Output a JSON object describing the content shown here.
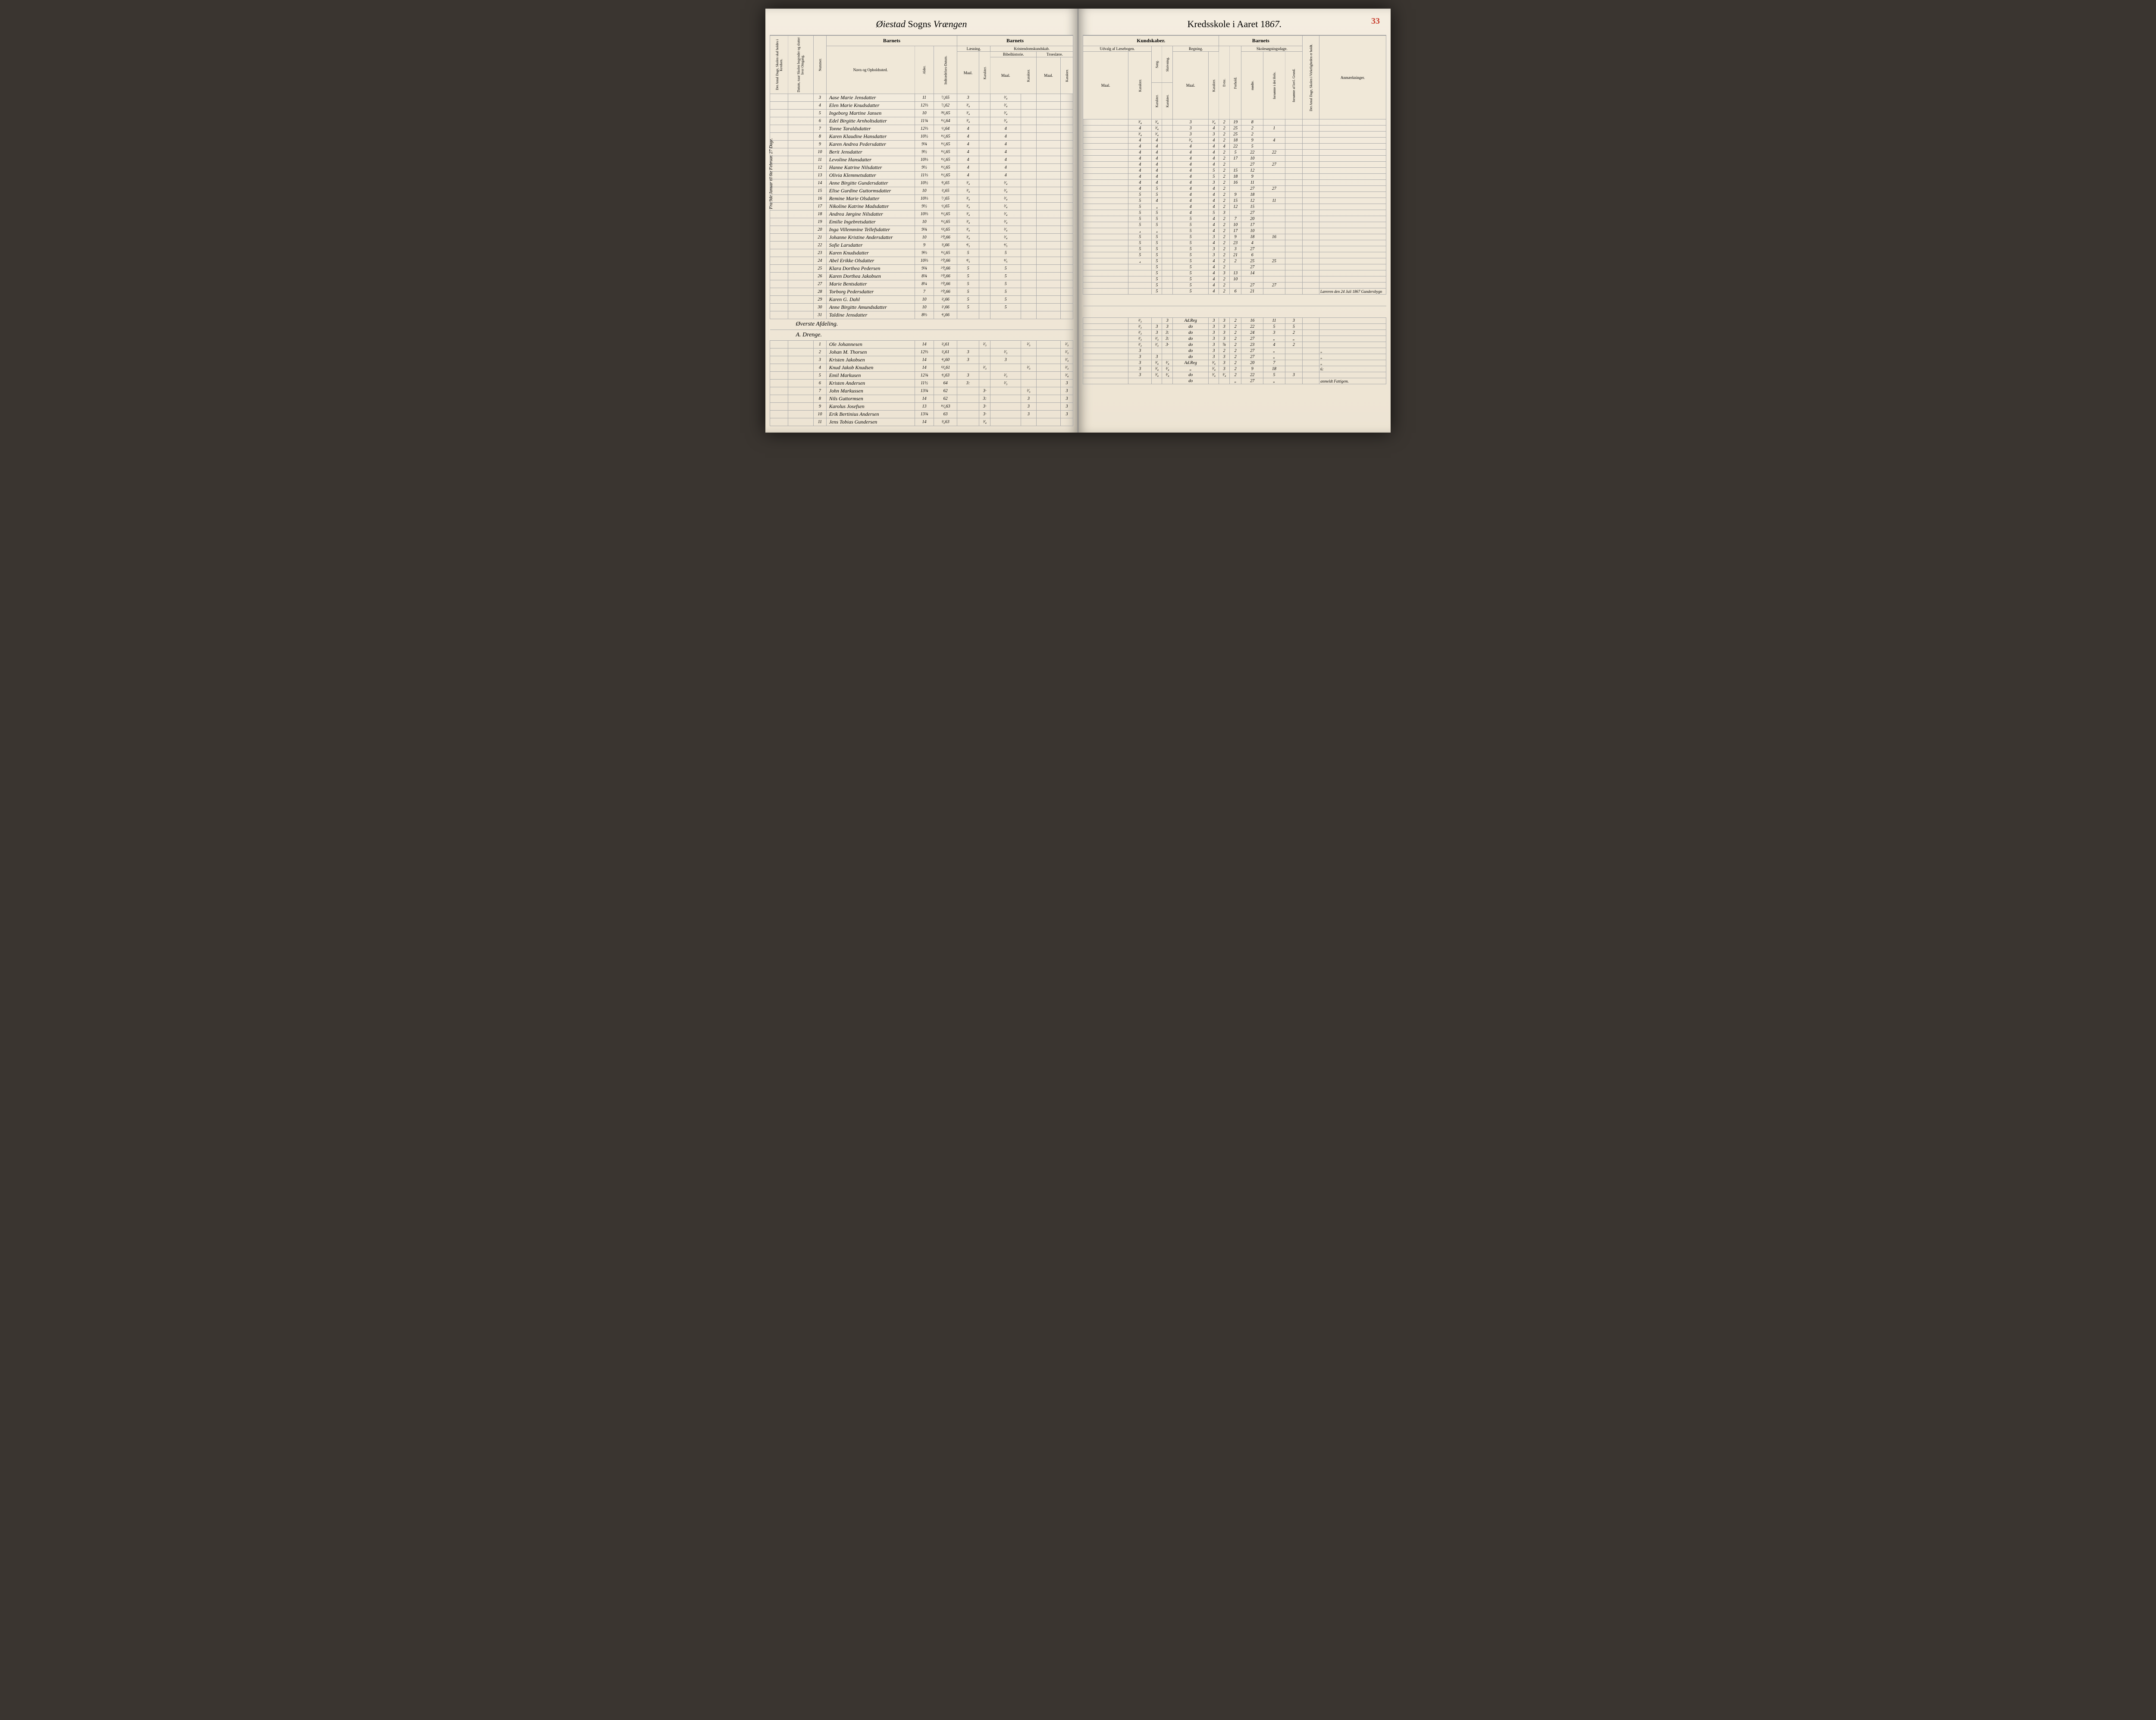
{
  "page_number": "33",
  "title": {
    "parish_script": "Øiestad",
    "sogns": "Sogns",
    "district_script": "Vrængen",
    "school": "Kredsskole i Aaret 18",
    "year_suffix": "67."
  },
  "headers": {
    "left_rotated1": "Det Antal Dage, Skolen skal holdes i Kredsen.",
    "left_rotated2": "Datum, naar Skolen begynder og slutter hver Omgang.",
    "nummer": "Nummer.",
    "barnets": "Barnets",
    "navn": "Navn og Opholdssted.",
    "alder": "Alder.",
    "indtrad": "Indtrædelses-Datum.",
    "laesning": "Læsning.",
    "kristendom": "Kristendomskundskab.",
    "maal": "Maal.",
    "karakter": "Karakter.",
    "bibelhistorie": "Bibelhistorie.",
    "troeslaere": "Troeslære.",
    "kundskaber": "Kundskaber.",
    "udvalg": "Udvalg af Læsebogen.",
    "sang": "Sang.",
    "skrivning": "Skrivning.",
    "regning": "Regning.",
    "evne": "Evne.",
    "forhold": "Forhold.",
    "skolesogning": "Skolesøgningsdage.",
    "modte": "mødte.",
    "forsomte_hele": "forsømte i det Hele.",
    "forsomte_lovl": "forsømte af lovl. Grund.",
    "antal_dage": "Det Antal Dage, Skolen i Virkeligheden er holdt.",
    "anmaerkninger": "Anmærkninger."
  },
  "side_note": "Fra 9de Januar til 6te Februar.  27 Dage.",
  "section_header1": "Øverste Afdeling.",
  "section_header2": "A. Drenge.",
  "final_note": "Læreren den 24 Juli 1867 Gundersbygn",
  "students_top": [
    {
      "n": "3",
      "name": "Aase Marie Jensdatter",
      "age": "11",
      "entry": "⁷⁄₆65",
      "l_m": "3",
      "l_k": "",
      "b_m": "³⁄₄",
      "b_k": "",
      "u_m": "",
      "u_k": "³⁄₄",
      "sa": "³⁄₄",
      "sk": "",
      "r_m": "3",
      "r_k": "³⁄₄",
      "ev": "2",
      "fh": "19",
      "md": "8",
      "f1": "",
      "f2": ""
    },
    {
      "n": "4",
      "name": "Elen Marie Knudsdatter",
      "age": "12⅔",
      "entry": "⁷⁄₆62",
      "l_m": "³⁄₄",
      "l_k": "",
      "b_m": "³⁄₄",
      "b_k": "",
      "u_m": "",
      "u_k": "4",
      "sa": "³⁄₄",
      "sk": "",
      "r_m": "3",
      "r_k": "4",
      "ev": "2",
      "fh": "25",
      "md": "2",
      "f1": "1",
      "f2": ""
    },
    {
      "n": "5",
      "name": "Ingeborg Martine Jansen",
      "age": "10",
      "entry": "²⁸⁄₆65",
      "l_m": "³⁄₄",
      "l_k": "",
      "b_m": "³⁄₄",
      "b_k": "",
      "u_m": "",
      "u_k": "³⁄₄",
      "sa": "³⁄₄",
      "sk": "",
      "r_m": "3",
      "r_k": "3",
      "ev": "2",
      "fh": "25",
      "md": "2",
      "f1": "",
      "f2": ""
    },
    {
      "n": "6",
      "name": "Edel Birgitte Arnholtsdatter",
      "age": "11¾",
      "entry": "¹⁶⁄₆64",
      "l_m": "³⁄₄",
      "l_k": "",
      "b_m": "³⁄₄",
      "b_k": "",
      "u_m": "",
      "u_k": "4",
      "sa": "4",
      "sk": "",
      "r_m": "³⁄₄",
      "r_k": "4",
      "ev": "2",
      "fh": "18",
      "md": "9",
      "f1": "4",
      "f2": ""
    },
    {
      "n": "7",
      "name": "Tonne Taraldsdatter",
      "age": "12⅔",
      "entry": "⁶⁄₆64",
      "l_m": "4",
      "l_k": "",
      "b_m": "4",
      "b_k": "",
      "u_m": "",
      "u_k": "4",
      "sa": "4",
      "sk": "",
      "r_m": "4",
      "r_k": "4",
      "ev": "4",
      "fh": "22",
      "md": "5",
      "f1": "",
      "f2": ""
    },
    {
      "n": "8",
      "name": "Karen Klaudine Hansdatter",
      "age": "10½",
      "entry": "¹⁶⁄₆65",
      "l_m": "4",
      "l_k": "",
      "b_m": "4",
      "b_k": "",
      "u_m": "",
      "u_k": "4",
      "sa": "4",
      "sk": "",
      "r_m": "4",
      "r_k": "4",
      "ev": "2",
      "fh": "5",
      "md": "22",
      "f1": "22",
      "f2": ""
    },
    {
      "n": "9",
      "name": "Karen Andrea Pedersdatter",
      "age": "9¾",
      "entry": "¹⁶⁄₆65",
      "l_m": "4",
      "l_k": "",
      "b_m": "4",
      "b_k": "",
      "u_m": "",
      "u_k": "4",
      "sa": "4",
      "sk": "",
      "r_m": "4",
      "r_k": "4",
      "ev": "2",
      "fh": "17",
      "md": "10",
      "f1": "",
      "f2": ""
    },
    {
      "n": "10",
      "name": "Berit Jensdatter",
      "age": "9½",
      "entry": "¹⁶⁄₆65",
      "l_m": "4",
      "l_k": "",
      "b_m": "4",
      "b_k": "",
      "u_m": "",
      "u_k": "4",
      "sa": "4",
      "sk": "",
      "r_m": "4",
      "r_k": "4",
      "ev": "2",
      "fh": "",
      "md": "27",
      "f1": "27",
      "f2": ""
    },
    {
      "n": "11",
      "name": "Levoline Hansdatter",
      "age": "10⅓",
      "entry": "¹⁶⁄₆65",
      "l_m": "4",
      "l_k": "",
      "b_m": "4",
      "b_k": "",
      "u_m": "",
      "u_k": "4",
      "sa": "4",
      "sk": "",
      "r_m": "4",
      "r_k": "5",
      "ev": "2",
      "fh": "15",
      "md": "12",
      "f1": "",
      "f2": ""
    },
    {
      "n": "12",
      "name": "Hanne Katrine Nilsdatter",
      "age": "9½",
      "entry": "¹⁶⁄₆65",
      "l_m": "4",
      "l_k": "",
      "b_m": "4",
      "b_k": "",
      "u_m": "",
      "u_k": "4",
      "sa": "4",
      "sk": "",
      "r_m": "4",
      "r_k": "5",
      "ev": "2",
      "fh": "18",
      "md": "9",
      "f1": "",
      "f2": ""
    },
    {
      "n": "13",
      "name": "Olivia Klemmetsdatter",
      "age": "11⅓",
      "entry": "¹⁶⁄₆65",
      "l_m": "4",
      "l_k": "",
      "b_m": "4",
      "b_k": "",
      "u_m": "",
      "u_k": "4",
      "sa": "4",
      "sk": "",
      "r_m": "4",
      "r_k": "3",
      "ev": "2",
      "fh": "16",
      "md": "11",
      "f1": "",
      "f2": ""
    },
    {
      "n": "14",
      "name": "Anne Birgitte Gundersdatter",
      "age": "10½",
      "entry": "⁸⁄₆65",
      "l_m": "³⁄₄",
      "l_k": "",
      "b_m": "³⁄₄",
      "b_k": "",
      "u_m": "",
      "u_k": "4",
      "sa": "5",
      "sk": "",
      "r_m": "4",
      "r_k": "4",
      "ev": "2",
      "fh": "",
      "md": "27",
      "f1": "27",
      "f2": ""
    },
    {
      "n": "15",
      "name": "Elise Gurdine Guttormsdatter",
      "age": "10",
      "entry": "²⁄₆65",
      "l_m": "³⁄₄",
      "l_k": "",
      "b_m": "³⁄₄",
      "b_k": "",
      "u_m": "",
      "u_k": "5",
      "sa": "5",
      "sk": "",
      "r_m": "4",
      "r_k": "4",
      "ev": "2",
      "fh": "9",
      "md": "18",
      "f1": "",
      "f2": ""
    },
    {
      "n": "16",
      "name": "Remine Marie Olsdatter",
      "age": "10⅓",
      "entry": "⁷⁄₂65",
      "l_m": "³⁄₄",
      "l_k": "",
      "b_m": "³⁄₄",
      "b_k": "",
      "u_m": "",
      "u_k": "5",
      "sa": "4",
      "sk": "",
      "r_m": "4",
      "r_k": "4",
      "ev": "2",
      "fh": "15",
      "md": "12",
      "f1": "11",
      "f2": ""
    },
    {
      "n": "17",
      "name": "Nikoline Katrine Madsdatter",
      "age": "9½",
      "entry": "⁶⁄₆65",
      "l_m": "³⁄₄",
      "l_k": "",
      "b_m": "³⁄₄",
      "b_k": "",
      "u_m": "",
      "u_k": "5",
      "sa": "₄",
      "sk": "",
      "r_m": "4",
      "r_k": "4",
      "ev": "2",
      "fh": "12",
      "md": "15",
      "f1": "",
      "f2": ""
    },
    {
      "n": "18",
      "name": "Andrea Jørgine Nilsdatter",
      "age": "10⅔",
      "entry": "¹⁶⁄₆65",
      "l_m": "³⁄₄",
      "l_k": "",
      "b_m": "³⁄₄",
      "b_k": "",
      "u_m": "",
      "u_k": "5",
      "sa": "5",
      "sk": "",
      "r_m": "4",
      "r_k": "5",
      "ev": "3",
      "fh": "",
      "md": "27",
      "f1": "",
      "f2": ""
    },
    {
      "n": "19",
      "name": "Emilie Ingebretsdatter",
      "age": "10",
      "entry": "¹⁶⁄₆65",
      "l_m": "³⁄₄",
      "l_k": "",
      "b_m": "³⁄₄",
      "b_k": "",
      "u_m": "",
      "u_k": "5",
      "sa": "5",
      "sk": "",
      "r_m": "5",
      "r_k": "4",
      "ev": "2",
      "fh": "7",
      "md": "20",
      "f1": "",
      "f2": ""
    },
    {
      "n": "20",
      "name": "Inga Villemmine Tellefsdatter",
      "age": "9¾",
      "entry": "¹²⁄₆65",
      "l_m": "³⁄₄",
      "l_k": "",
      "b_m": "³⁄₄",
      "b_k": "",
      "u_m": "",
      "u_k": "5",
      "sa": "5",
      "sk": "",
      "r_m": "5",
      "r_k": "4",
      "ev": "2",
      "fh": "10",
      "md": "17",
      "f1": "",
      "f2": ""
    },
    {
      "n": "21",
      "name": "Johanne Kristine Andersdatter",
      "age": "10",
      "entry": "²⁰⁄₆66",
      "l_m": "³⁄₄",
      "l_k": "",
      "b_m": "³⁄₄",
      "b_k": "",
      "u_m": "",
      "u_k": "₄",
      "sa": "₄",
      "sk": "",
      "r_m": "5",
      "r_k": "4",
      "ev": "2",
      "fh": "17",
      "md": "10",
      "f1": "",
      "f2": ""
    },
    {
      "n": "22",
      "name": "Sofie Larsdatter",
      "age": "9",
      "entry": "³⁄₆66",
      "l_m": "⁴⁄₅",
      "l_k": "",
      "b_m": "⁴⁄₅",
      "b_k": "",
      "u_m": "",
      "u_k": "5",
      "sa": "5",
      "sk": "",
      "r_m": "5",
      "r_k": "3",
      "ev": "2",
      "fh": "9",
      "md": "18",
      "f1": "16",
      "f2": ""
    },
    {
      "n": "23",
      "name": "Karen Knudsdatter",
      "age": "9⅔",
      "entry": "¹⁶⁄₆65",
      "l_m": "5",
      "l_k": "",
      "b_m": "5",
      "b_k": "",
      "u_m": "",
      "u_k": "5",
      "sa": "5",
      "sk": "",
      "r_m": "5",
      "r_k": "4",
      "ev": "2",
      "fh": "23",
      "md": "4",
      "f1": "",
      "f2": ""
    },
    {
      "n": "24",
      "name": "Abel Erikke Olsdatter",
      "age": "10⅔",
      "entry": "²⁰⁄₆66",
      "l_m": "⁴⁄₅",
      "l_k": "",
      "b_m": "⁴⁄₅",
      "b_k": "",
      "u_m": "",
      "u_k": "5",
      "sa": "5",
      "sk": "",
      "r_m": "5",
      "r_k": "3",
      "ev": "2",
      "fh": "3",
      "md": "27",
      "f1": "",
      "f2": ""
    },
    {
      "n": "25",
      "name": "Klara Dorthea Pedersen",
      "age": "9¾",
      "entry": "²⁰⁄₆66",
      "l_m": "5",
      "l_k": "",
      "b_m": "5",
      "b_k": "",
      "u_m": "",
      "u_k": "5",
      "sa": "5",
      "sk": "",
      "r_m": "5",
      "r_k": "3",
      "ev": "2",
      "fh": "21",
      "md": "6",
      "f1": "",
      "f2": ""
    },
    {
      "n": "26",
      "name": "Karen Dorthea Jakobsen",
      "age": "8¾",
      "entry": "²⁰⁄₆66",
      "l_m": "5",
      "l_k": "",
      "b_m": "5",
      "b_k": "",
      "u_m": "",
      "u_k": "₄",
      "sa": "5",
      "sk": "",
      "r_m": "5",
      "r_k": "4",
      "ev": "2",
      "fh": "2",
      "md": "25",
      "f1": "25",
      "f2": ""
    },
    {
      "n": "27",
      "name": "Marie Bentsdatter",
      "age": "8¼",
      "entry": "²⁰⁄₆66",
      "l_m": "5",
      "l_k": "",
      "b_m": "5",
      "b_k": "",
      "u_m": "",
      "u_k": "",
      "sa": "5",
      "sk": "",
      "r_m": "5",
      "r_k": "4",
      "ev": "2",
      "fh": "",
      "md": "27",
      "f1": "",
      "f2": ""
    },
    {
      "n": "28",
      "name": "Torborg Pedersdatter",
      "age": "7",
      "entry": "²⁰⁄₆66",
      "l_m": "5",
      "l_k": "",
      "b_m": "5",
      "b_k": "",
      "u_m": "",
      "u_k": "",
      "sa": "5",
      "sk": "",
      "r_m": "5",
      "r_k": "4",
      "ev": "3",
      "fh": "13",
      "md": "14",
      "f1": "",
      "f2": ""
    },
    {
      "n": "29",
      "name": "Karen G. Dahl",
      "age": "10",
      "entry": "²⁄₆66",
      "l_m": "5",
      "l_k": "",
      "b_m": "5",
      "b_k": "",
      "u_m": "",
      "u_k": "",
      "sa": "5",
      "sk": "",
      "r_m": "5",
      "r_k": "4",
      "ev": "2",
      "fh": "10",
      "md": "",
      "f1": "",
      "f2": ""
    },
    {
      "n": "30",
      "name": "Anne Birgitte Amundsdatter",
      "age": "10",
      "entry": "²⁄₁66",
      "l_m": "5",
      "l_k": "",
      "b_m": "5",
      "b_k": "",
      "u_m": "",
      "u_k": "",
      "sa": "5",
      "sk": "",
      "r_m": "5",
      "r_k": "4",
      "ev": "2",
      "fh": "",
      "md": "27",
      "f1": "27",
      "f2": ""
    },
    {
      "n": "31",
      "name": "Taldine Jensdatter",
      "age": "8⅔",
      "entry": "⁴⁄₆66",
      "l_m": "",
      "l_k": "",
      "b_m": "",
      "b_k": "",
      "u_m": "",
      "u_k": "",
      "sa": "5",
      "sk": "",
      "r_m": "5",
      "r_k": "4",
      "ev": "2",
      "fh": "6",
      "md": "21",
      "f1": "",
      "f2": ""
    }
  ],
  "students_bottom": [
    {
      "n": "1",
      "name": "Ole Johannesen",
      "age": "14",
      "entry": "²⁄₆61",
      "l_m": "",
      "l_k": "²⁄₃",
      "b_m": "",
      "b_k": "²⁄₃",
      "t_m": "",
      "t_k": "²⁄₃",
      "u_m": "",
      "u_k": "²⁄₃",
      "sa": "",
      "sk": "3",
      "r_m": "Ad.Reg",
      "r_k": "3",
      "ev": "3",
      "fh": "2",
      "md": "16",
      "f1": "11",
      "f2": "3",
      "ann": ""
    },
    {
      "n": "2",
      "name": "Johan M. Thorsen",
      "age": "12⅔",
      "entry": "²⁄₆61",
      "l_m": "3",
      "l_k": "",
      "b_m": "²⁄₃",
      "b_k": "",
      "t_m": "",
      "t_k": "²⁄₃",
      "u_m": "",
      "u_k": "²⁄₃",
      "sa": "3",
      "sk": "3",
      "r_m": "do",
      "r_k": "3",
      "ev": "3",
      "fh": "2",
      "md": "22",
      "f1": "5",
      "f2": "5",
      "ann": ""
    },
    {
      "n": "3",
      "name": "Kristen Jakobsen",
      "age": "14",
      "entry": "⁴⁄₆60",
      "l_m": "3",
      "l_k": "",
      "b_m": "3",
      "b_k": "",
      "t_m": "",
      "t_k": "²⁄₃",
      "u_m": "",
      "u_k": "²⁄₃",
      "sa": "3",
      "sk": "3:",
      "r_m": "do",
      "r_k": "3",
      "ev": "3",
      "fh": "2",
      "md": "24",
      "f1": "3",
      "f2": "2",
      "ann": ""
    },
    {
      "n": "4",
      "name": "Knud Jakob Knudsen",
      "age": "14",
      "entry": "¹²⁄₆61",
      "l_m": "",
      "l_k": "²⁄₃",
      "b_m": "",
      "b_k": "²⁄₃",
      "t_m": "",
      "t_k": "²⁄₃",
      "u_m": "",
      "u_k": "²⁄₃",
      "sa": "²⁄₃",
      "sk": "3:",
      "r_m": "do",
      "r_k": "3",
      "ev": "3",
      "fh": "2",
      "md": "27",
      "f1": "„",
      "f2": "„",
      "ann": ""
    },
    {
      "n": "5",
      "name": "Emil Markusen",
      "age": "12¾",
      "entry": "⁴⁄₆63",
      "l_m": "3",
      "l_k": "",
      "b_m": "²⁄₃",
      "b_k": "",
      "t_m": "",
      "t_k": "³⁄₄",
      "u_m": "",
      "u_k": "²⁄₃",
      "sa": "²⁄₃",
      "sk": "3·",
      "r_m": "do",
      "r_k": "3",
      "ev": "⅞",
      "fh": "2",
      "md": "23",
      "f1": "4",
      "f2": "2",
      "ann": ""
    },
    {
      "n": "6",
      "name": "Kristen Andersen",
      "age": "11½",
      "entry": "64",
      "l_m": "3:",
      "l_k": "",
      "b_m": "²⁄₃",
      "b_k": "",
      "t_m": "",
      "t_k": "3",
      "u_m": "",
      "u_k": "3",
      "sa": "",
      "sk": "",
      "r_m": "do",
      "r_k": "3",
      "ev": "2",
      "fh": "2",
      "md": "27",
      "f1": "„",
      "f2": "",
      "ann": "„"
    },
    {
      "n": "7",
      "name": "John Markussen",
      "age": "13¾",
      "entry": "62",
      "l_m": "",
      "l_k": "3·",
      "b_m": "",
      "b_k": "²⁄₃",
      "t_m": "",
      "t_k": "3",
      "u_m": "",
      "u_k": "3",
      "sa": "3",
      "sk": "",
      "r_m": "do",
      "r_k": "3",
      "ev": "3",
      "fh": "2",
      "md": "27",
      "f1": "„",
      "f2": "",
      "ann": "„"
    },
    {
      "n": "8",
      "name": "Nils Guttormsen",
      "age": "14",
      "entry": "62",
      "l_m": "",
      "l_k": "3:",
      "b_m": "",
      "b_k": "3",
      "t_m": "",
      "t_k": "3",
      "u_m": "",
      "u_k": "3",
      "sa": "³⁄₄",
      "sk": "³⁄₄",
      "r_m": "Ad.Reg",
      "r_k": "³⁄₄",
      "ev": "3",
      "fh": "2",
      "md": "20",
      "f1": "7",
      "f2": "",
      "ann": "„"
    },
    {
      "n": "9",
      "name": "Karolus Josefsen",
      "age": "13",
      "entry": "¹⁶⁄₆63",
      "l_m": "",
      "l_k": "3·",
      "b_m": "",
      "b_k": "3",
      "t_m": "",
      "t_k": "3",
      "u_m": "",
      "u_k": "3",
      "sa": "³⁄₄",
      "sk": "³⁄₄",
      "r_m": "„",
      "r_k": "³⁄₄",
      "ev": "3",
      "fh": "2",
      "md": "9",
      "f1": "18",
      "f2": "",
      "ann": "6:"
    },
    {
      "n": "10",
      "name": "Erik Bertinius Andersen",
      "age": "13¾",
      "entry": "63",
      "l_m": "",
      "l_k": "3·",
      "b_m": "",
      "b_k": "3",
      "t_m": "",
      "t_k": "3",
      "u_m": "",
      "u_k": "3",
      "sa": "³⁄₄",
      "sk": "³⁄₄",
      "r_m": "do",
      "r_k": "³⁄₄",
      "ev": "³⁄₄",
      "fh": "2",
      "md": "22",
      "f1": "5",
      "f2": "3",
      "ann": ""
    },
    {
      "n": "11",
      "name": "Jens Tobias Gundersen",
      "age": "14",
      "entry": "³⁄₆63",
      "l_m": "",
      "l_k": "³⁄₄",
      "b_m": "",
      "b_k": "",
      "t_m": "",
      "t_k": "",
      "u_m": "",
      "u_k": "",
      "sa": "",
      "sk": "",
      "r_m": "do",
      "r_k": "",
      "ev": "",
      "fh": "„",
      "md": "27",
      "f1": "„",
      "f2": "",
      "ann": "anmeldt Fattigem."
    }
  ]
}
